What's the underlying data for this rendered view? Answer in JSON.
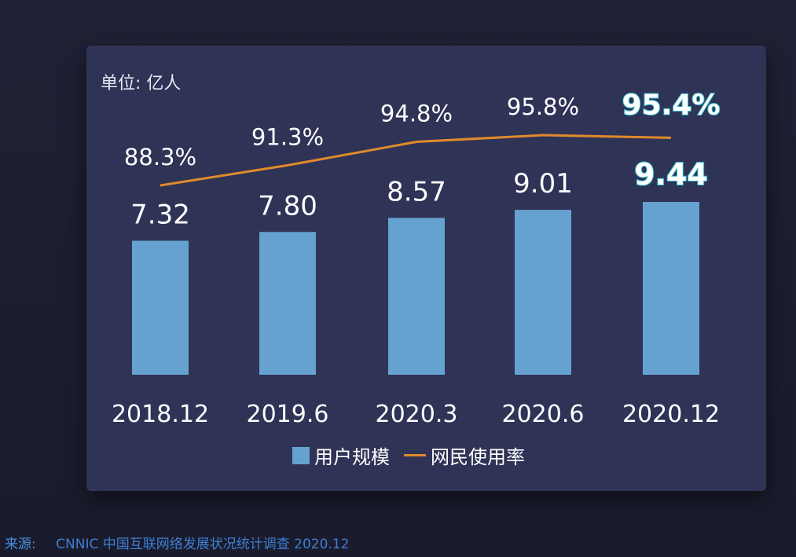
{
  "chart_data": {
    "type": "bar+line",
    "unit_label": "单位:  亿人",
    "categories": [
      "2018.12",
      "2019.6",
      "2020.3",
      "2020.6",
      "2020.12"
    ],
    "series": [
      {
        "name": "用户规模",
        "type": "bar",
        "values": [
          7.32,
          7.8,
          8.57,
          9.01,
          9.44
        ],
        "labels": [
          "7.32",
          "7.80",
          "8.57",
          "9.01",
          "9.44"
        ],
        "color": "#66a2cf"
      },
      {
        "name": "网民使用率",
        "type": "line",
        "values": [
          88.3,
          91.3,
          94.8,
          95.8,
          95.4
        ],
        "labels": [
          "88.3%",
          "91.3%",
          "94.8%",
          "95.8%",
          "95.4%"
        ],
        "color": "#e08a2c"
      }
    ],
    "highlight_color": "#2fb8c8",
    "legend": "bottom"
  },
  "source": {
    "label": "来源:",
    "text": "CNNIC 中国互联网络发展状况统计调查 2020.12"
  }
}
